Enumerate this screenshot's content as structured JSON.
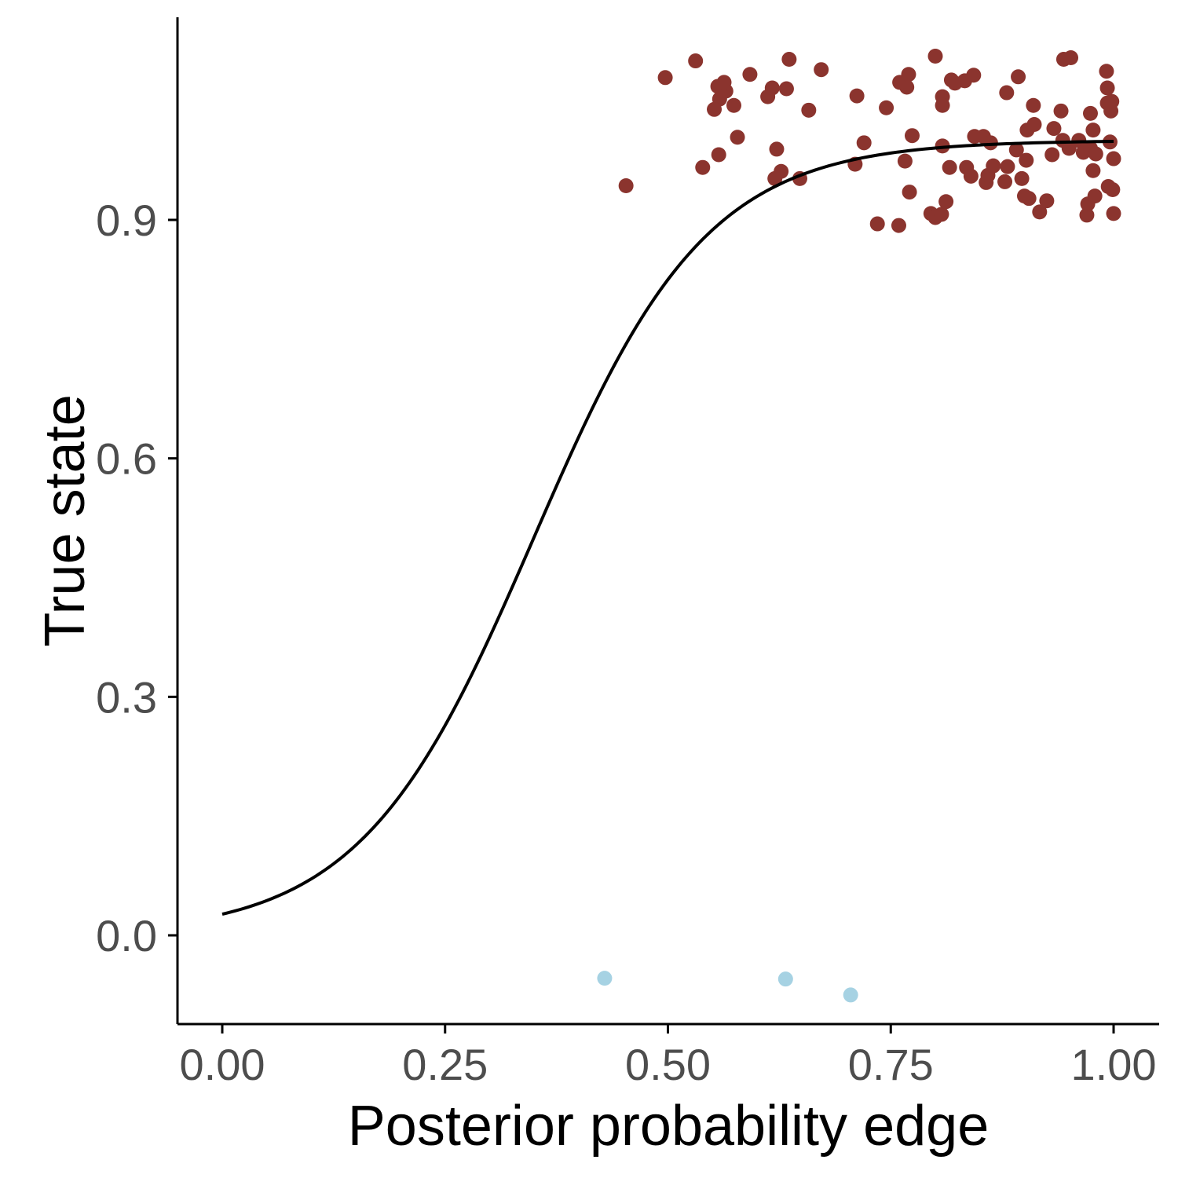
{
  "chart_data": {
    "type": "scatter",
    "title": "",
    "xlabel": "Posterior probability edge",
    "ylabel": "True state",
    "xlim": [
      -0.05,
      1.05
    ],
    "ylim": [
      -0.125,
      1.28
    ],
    "x_ticks": [
      0.0,
      0.25,
      0.5,
      0.75,
      1.0
    ],
    "x_tick_labels": [
      "0.00",
      "0.25",
      "0.50",
      "0.75",
      "1.00"
    ],
    "y_ticks": [
      0.0,
      0.3,
      0.6,
      0.9
    ],
    "y_tick_labels": [
      "0.0",
      "0.3",
      "0.6",
      "0.9"
    ],
    "grid": false,
    "legend": "none",
    "colors": {
      "positive": "#8b342e",
      "negative": "#a6d2e3",
      "curve": "#000000"
    },
    "fit_curve": {
      "type": "logistic",
      "intercept": -3.6,
      "slope": 10.3,
      "x_range": [
        0.0,
        1.0
      ]
    },
    "series": [
      {
        "points": [
          [
            0.453,
            0.943
          ],
          [
            0.497,
            1.079
          ],
          [
            0.531,
            1.1
          ],
          [
            0.539,
            0.966
          ],
          [
            0.557,
            0.982
          ],
          [
            0.556,
            1.068
          ],
          [
            0.558,
            1.052
          ],
          [
            0.565,
            1.062
          ],
          [
            0.552,
            1.039
          ],
          [
            0.563,
            1.073
          ],
          [
            0.574,
            1.044
          ],
          [
            0.578,
            1.004
          ],
          [
            0.592,
            1.083
          ],
          [
            0.612,
            1.055
          ],
          [
            0.617,
            1.066
          ],
          [
            0.62,
            0.952
          ],
          [
            0.622,
            0.989
          ],
          [
            0.627,
            0.961
          ],
          [
            0.633,
            1.065
          ],
          [
            0.636,
            1.102
          ],
          [
            0.648,
            0.952
          ],
          [
            0.658,
            1.038
          ],
          [
            0.672,
            1.089
          ],
          [
            0.712,
            1.056
          ],
          [
            0.71,
            0.97
          ],
          [
            0.72,
            0.997
          ],
          [
            0.735,
            0.895
          ],
          [
            0.745,
            1.041
          ],
          [
            0.759,
            0.893
          ],
          [
            0.76,
            1.073
          ],
          [
            0.766,
            0.974
          ],
          [
            0.768,
            1.067
          ],
          [
            0.77,
            1.083
          ],
          [
            0.771,
            0.935
          ],
          [
            0.774,
            1.006
          ],
          [
            0.795,
            0.908
          ],
          [
            0.8,
            0.903
          ],
          [
            0.8,
            1.106
          ],
          [
            0.807,
            0.907
          ],
          [
            0.808,
            0.993
          ],
          [
            0.808,
            1.055
          ],
          [
            0.808,
            1.044
          ],
          [
            0.812,
            0.923
          ],
          [
            0.816,
            0.966
          ],
          [
            0.818,
            1.076
          ],
          [
            0.822,
            1.072
          ],
          [
            0.833,
            1.075
          ],
          [
            0.835,
            0.966
          ],
          [
            0.84,
            0.955
          ],
          [
            0.843,
            1.082
          ],
          [
            0.844,
            1.005
          ],
          [
            0.854,
            1.005
          ],
          [
            0.857,
            0.947
          ],
          [
            0.859,
            0.956
          ],
          [
            0.862,
            0.997
          ],
          [
            0.865,
            0.968
          ],
          [
            0.878,
            0.948
          ],
          [
            0.88,
            1.06
          ],
          [
            0.881,
            0.967
          ],
          [
            0.891,
            0.988
          ],
          [
            0.893,
            1.08
          ],
          [
            0.897,
            0.952
          ],
          [
            0.9,
            0.93
          ],
          [
            0.902,
            0.975
          ],
          [
            0.903,
            1.013
          ],
          [
            0.905,
            0.927
          ],
          [
            0.91,
            1.044
          ],
          [
            0.911,
            1.02
          ],
          [
            0.917,
            0.91
          ],
          [
            0.925,
            0.924
          ],
          [
            0.931,
            0.982
          ],
          [
            0.933,
            1.015
          ],
          [
            0.941,
            1.037
          ],
          [
            0.943,
            1.0
          ],
          [
            0.944,
            1.102
          ],
          [
            0.95,
            0.99
          ],
          [
            0.952,
            1.104
          ],
          [
            0.961,
            1.0
          ],
          [
            0.966,
            0.985
          ],
          [
            0.97,
            0.906
          ],
          [
            0.971,
            0.92
          ],
          [
            0.974,
            1.034
          ],
          [
            0.974,
            0.99
          ],
          [
            0.977,
            1.013
          ],
          [
            0.977,
            0.962
          ],
          [
            0.979,
            0.93
          ],
          [
            0.98,
            0.983
          ],
          [
            0.992,
            1.087
          ],
          [
            0.993,
            1.066
          ],
          [
            0.993,
            1.047
          ],
          [
            0.994,
            0.942
          ],
          [
            0.996,
            0.998
          ],
          [
            0.997,
            1.037
          ],
          [
            0.998,
            1.049
          ],
          [
            0.999,
            0.938
          ],
          [
            1.0,
            0.908
          ],
          [
            1.0,
            0.977
          ]
        ]
      },
      {
        "points": [
          [
            0.429,
            -0.054
          ],
          [
            0.632,
            -0.055
          ],
          [
            0.705,
            -0.075
          ]
        ]
      }
    ]
  }
}
